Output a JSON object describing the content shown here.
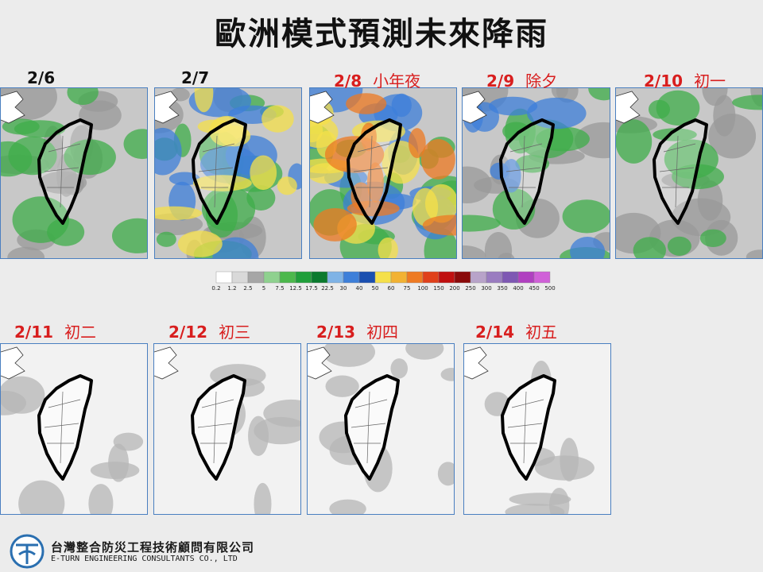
{
  "title": "歐洲模式預測未來降雨",
  "panels": [
    {
      "date": "2/6",
      "label": null
    },
    {
      "date": "2/7",
      "label": null
    },
    {
      "date": "2/8",
      "label": "小年夜"
    },
    {
      "date": "2/9",
      "label": "除夕"
    },
    {
      "date": "2/10",
      "label": "初一"
    },
    {
      "date": "2/11",
      "label": "初二"
    },
    {
      "date": "2/12",
      "label": "初三"
    },
    {
      "date": "2/13",
      "label": "初四"
    },
    {
      "date": "2/14",
      "label": "初五"
    }
  ],
  "legend": {
    "ticks": [
      0.2,
      1.2,
      2.5,
      5,
      7.5,
      12.5,
      17.5,
      22.5,
      30,
      40,
      50,
      60,
      75,
      100,
      150,
      200,
      250,
      300,
      350,
      400,
      450,
      500
    ],
    "colors": [
      "#ffffff",
      "#d9d9d9",
      "#a6a6a6",
      "#8fd18f",
      "#4cb84c",
      "#1f9e3a",
      "#0b7a2e",
      "#7fb3e6",
      "#3d7fd9",
      "#1a4fb0",
      "#f5e04a",
      "#f2b233",
      "#ee7a22",
      "#e0401a",
      "#c01010",
      "#8a0a0a",
      "#b8a3c9",
      "#9a7cc0",
      "#7e58b3",
      "#b040c0",
      "#d060d8"
    ]
  },
  "company": {
    "name": "台灣整合防災工程技術顧問有限公司",
    "english": "E-TURN ENGINEERING CONSULTANTS CO., LTD"
  }
}
